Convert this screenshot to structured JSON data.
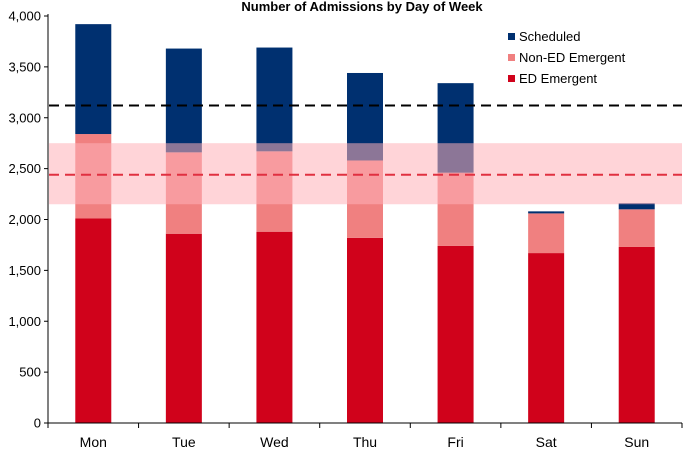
{
  "chart_data": {
    "type": "bar",
    "stacked": true,
    "title": "Number of Admissions by Day of Week",
    "xlabel": "",
    "ylabel": "",
    "ylim": [
      0,
      4000
    ],
    "ytick_step": 500,
    "ytick_labels": [
      "0",
      "500",
      "1,000",
      "1,500",
      "2,000",
      "2,500",
      "3,000",
      "3,500",
      "4,000"
    ],
    "categories": [
      "Mon",
      "Tue",
      "Wed",
      "Thu",
      "Fri",
      "Sat",
      "Sun"
    ],
    "series": [
      {
        "name": "ED Emergent",
        "color": "#d0021b",
        "values": [
          2010,
          1860,
          1880,
          1820,
          1740,
          1670,
          1730
        ]
      },
      {
        "name": "Non-ED Emergent",
        "color": "#f08080",
        "values": [
          830,
          800,
          790,
          760,
          720,
          390,
          370
        ]
      },
      {
        "name": "Scheduled",
        "color": "#003070",
        "values": [
          1080,
          1020,
          1020,
          860,
          880,
          20,
          60
        ]
      }
    ],
    "legend_order": [
      "Scheduled",
      "Non-ED Emergent",
      "ED Emergent"
    ],
    "legend_position": "top-right",
    "reference_lines": [
      {
        "value": 3120,
        "color": "#000000",
        "style": "dashed"
      },
      {
        "value": 2440,
        "color": "#e03040",
        "style": "dashed"
      }
    ],
    "band": {
      "from": 2150,
      "to": 2750,
      "color": "#ffb0b8"
    },
    "grid": false
  }
}
